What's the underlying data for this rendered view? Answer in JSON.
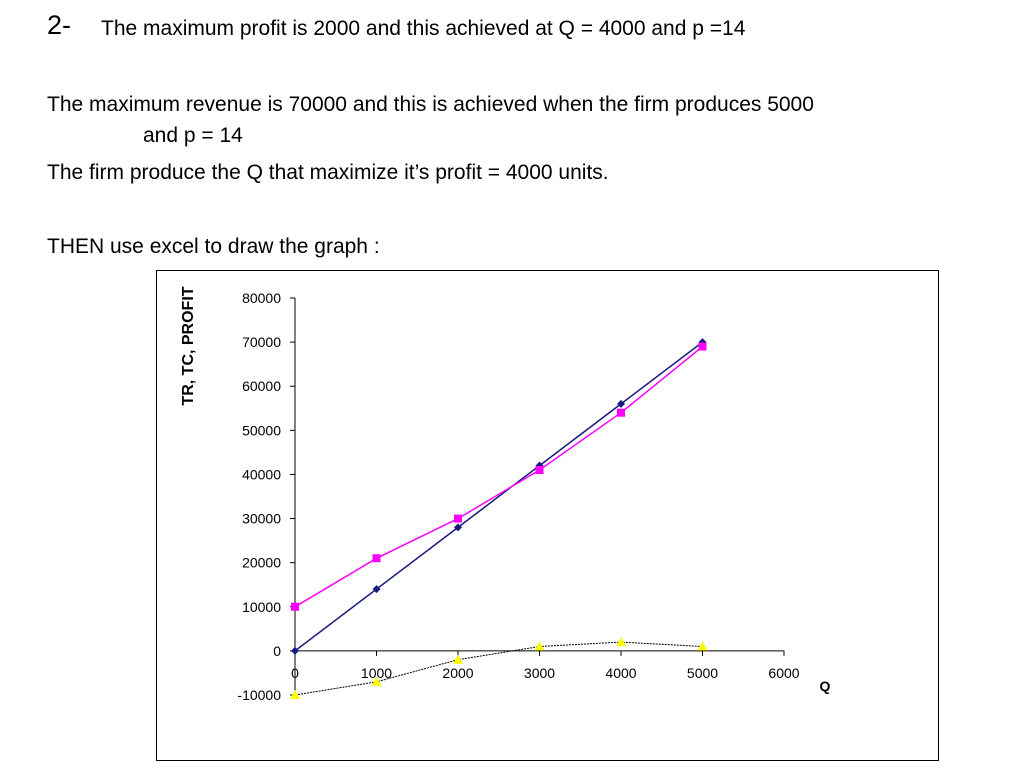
{
  "content": {
    "heading_number": "2-",
    "heading_text": "The maximum profit is 2000 and this achieved at Q = 4000 and p =14",
    "line1": "The maximum revenue is 70000 and this is achieved when the firm produces 5000",
    "line2": "and p = 14",
    "line3": "The firm produce the Q that maximize it’s profit = 4000 units.",
    "line4": "THEN use excel to draw the graph :"
  },
  "chart_data": {
    "type": "line",
    "title": "",
    "xlabel": "Q",
    "ylabel": "TR, TC, PROFIT",
    "x": [
      0,
      1000,
      2000,
      3000,
      4000,
      5000
    ],
    "xlim": [
      0,
      6000
    ],
    "ylim": [
      -10000,
      80000
    ],
    "x_ticks": [
      0,
      1000,
      2000,
      3000,
      4000,
      5000,
      6000
    ],
    "y_ticks": [
      -10000,
      0,
      10000,
      20000,
      30000,
      40000,
      50000,
      60000,
      70000,
      80000
    ],
    "grid": false,
    "series": [
      {
        "key": "tr",
        "values": [
          0,
          14000,
          28000,
          42000,
          56000,
          70000
        ],
        "color": "#1a1a80",
        "marker": "diamond"
      },
      {
        "key": "tc",
        "values": [
          10000,
          21000,
          30000,
          41000,
          54000,
          69000
        ],
        "color": "#ff00ff",
        "marker": "square"
      },
      {
        "key": "profit",
        "values": [
          -10000,
          -7000,
          -2000,
          1000,
          2000,
          1000
        ],
        "color": "#ffff00",
        "line_color": "#000000",
        "marker": "triangle"
      }
    ]
  }
}
